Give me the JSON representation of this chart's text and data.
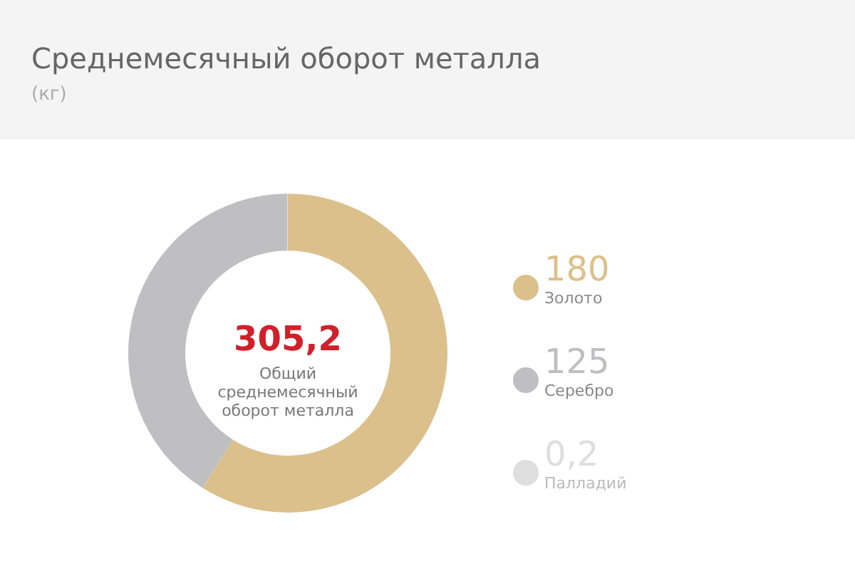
{
  "chart_data": {
    "type": "donut",
    "title": "Среднемесячный оборот металла",
    "subtitle": "(кг)",
    "categories": [
      "Золото",
      "Серебро",
      "Палладий"
    ],
    "values": [
      180,
      125,
      0.2
    ],
    "colors": [
      "#dcc08c",
      "#bfbfc1",
      "#dedede"
    ],
    "value_labels": [
      "180",
      "125",
      "0,2"
    ],
    "legend": "right",
    "annotations": [
      {
        "text": "305,2"
      },
      {
        "text": "Общий среднемесячный оборот металла"
      }
    ]
  }
}
